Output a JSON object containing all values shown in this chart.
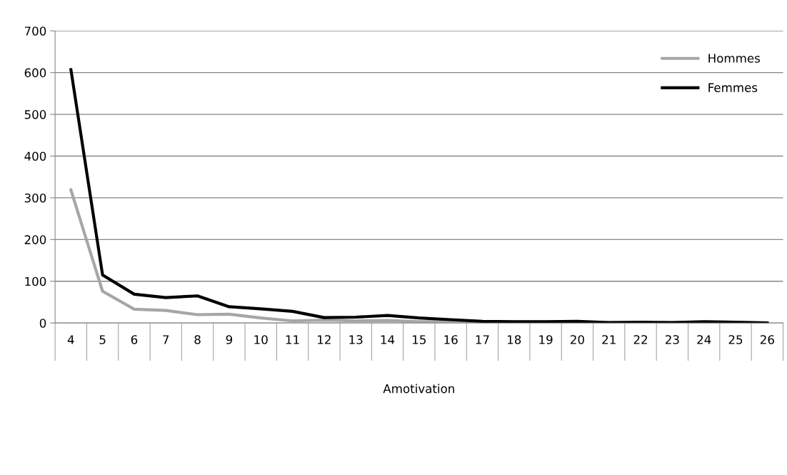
{
  "chart_data": {
    "type": "line",
    "xlabel": "Amotivation",
    "categories": [
      "4",
      "5",
      "6",
      "7",
      "8",
      "9",
      "10",
      "11",
      "12",
      "13",
      "14",
      "15",
      "16",
      "17",
      "18",
      "19",
      "20",
      "21",
      "22",
      "23",
      "24",
      "25",
      "26"
    ],
    "series": [
      {
        "name": "Hommes",
        "color": "#a6a6a6",
        "values": [
          319,
          76,
          33,
          30,
          20,
          21,
          12,
          5,
          7,
          5,
          6,
          3,
          3,
          2,
          2,
          2,
          2,
          1,
          1,
          1,
          2,
          2,
          1
        ]
      },
      {
        "name": "Femmes",
        "color": "#000000",
        "values": [
          607,
          115,
          69,
          61,
          65,
          39,
          34,
          28,
          13,
          14,
          18,
          12,
          8,
          4,
          3,
          3,
          4,
          1,
          2,
          1,
          3,
          2,
          0
        ]
      }
    ],
    "ylim": [
      0,
      700
    ],
    "yticks": [
      0,
      100,
      200,
      300,
      400,
      500,
      600,
      700
    ],
    "grid": "y",
    "legend": "top right",
    "marker": "none",
    "line_style": "solid"
  }
}
